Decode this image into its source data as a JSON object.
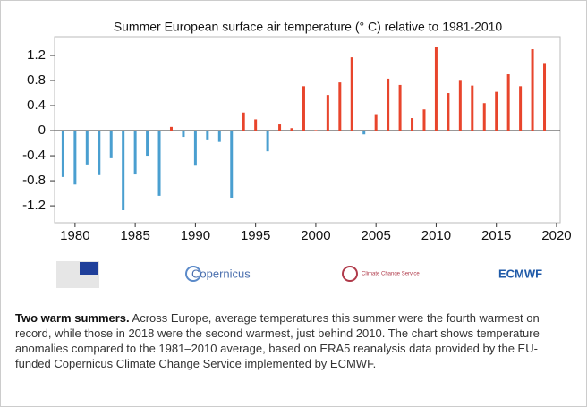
{
  "chart_data": {
    "type": "bar",
    "title": "Summer European surface air temperature (° C) relative to 1981-2010",
    "x": [
      1979,
      1980,
      1981,
      1982,
      1983,
      1984,
      1985,
      1986,
      1987,
      1988,
      1989,
      1990,
      1991,
      1992,
      1993,
      1994,
      1995,
      1996,
      1997,
      1998,
      1999,
      2000,
      2001,
      2002,
      2003,
      2004,
      2005,
      2006,
      2007,
      2008,
      2009,
      2010,
      2011,
      2012,
      2013,
      2014,
      2015,
      2016,
      2017,
      2018,
      2019
    ],
    "values": [
      -0.74,
      -0.86,
      -0.54,
      -0.71,
      -0.44,
      -1.27,
      -0.7,
      -0.4,
      -1.04,
      0.06,
      -0.1,
      -0.56,
      -0.14,
      -0.18,
      -1.07,
      0.29,
      0.18,
      -0.33,
      0.1,
      0.04,
      0.71,
      0.01,
      0.57,
      0.77,
      1.17,
      -0.06,
      0.25,
      0.83,
      0.73,
      0.2,
      0.34,
      1.33,
      0.6,
      0.81,
      0.72,
      0.44,
      0.62,
      0.9,
      0.71,
      1.3,
      1.08
    ],
    "positive_color": "#e8452c",
    "negative_color": "#4a9fd0",
    "xlim": [
      1978.3,
      2020.3
    ],
    "xticks": [
      1980,
      1985,
      1990,
      1995,
      2000,
      2005,
      2010,
      2015,
      2020
    ],
    "ylim": [
      -1.47,
      1.5
    ],
    "yticks": [
      -1.2,
      -0.8,
      -0.4,
      0,
      0.4,
      0.8,
      1.2
    ]
  },
  "logos": [
    "Copernicus",
    "Climate Change Service",
    "ECMWF"
  ],
  "caption": {
    "lead": "Two warm summers.",
    "text": " Across Europe, average temperatures this summer were the fourth warmest on record, while those in 2018 were the second warmest, just behind 2010. The chart shows temperature anomalies compared to the 1981–2010 average, based on ERA5 reanalysis data provided by the EU-funded Copernicus Climate Change Service implemented by ECMWF."
  }
}
